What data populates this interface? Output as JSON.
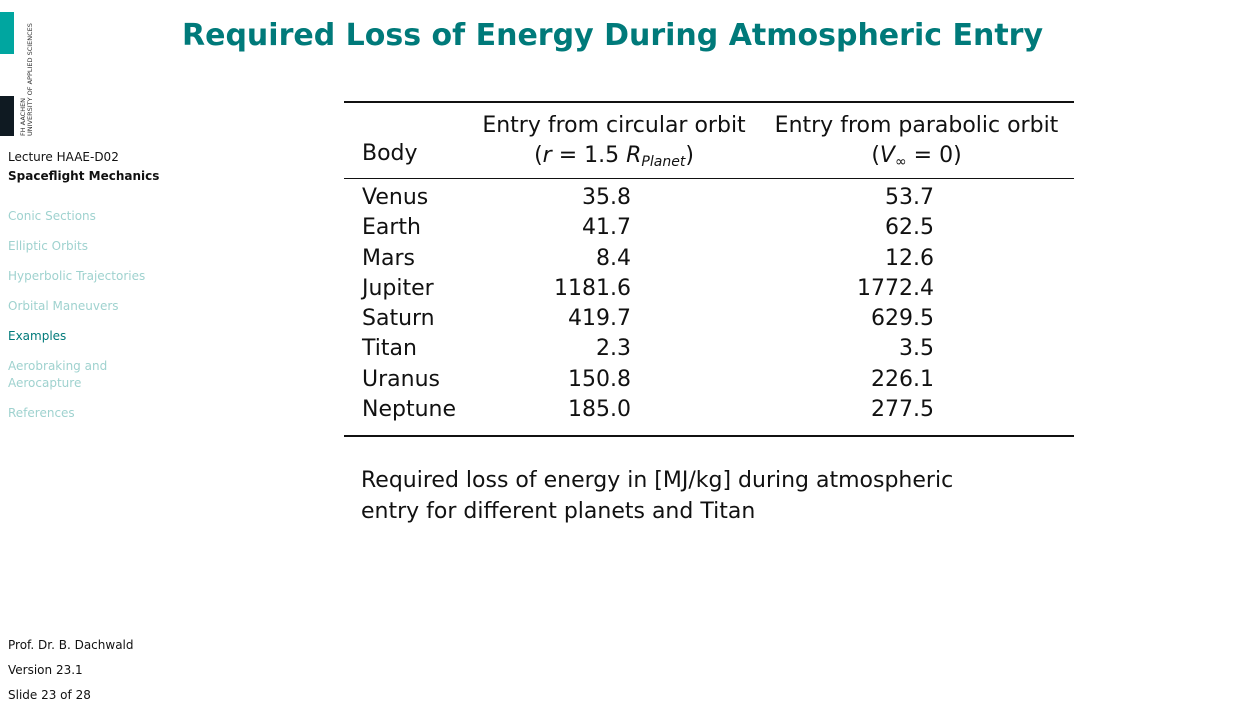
{
  "logo": {
    "line1": "FH AACHEN",
    "line2": "UNIVERSITY OF APPLIED SCIENCES"
  },
  "sidebar": {
    "lecture_code": "Lecture HAAE-D02",
    "course_title": "Spaceflight Mechanics",
    "nav": [
      {
        "label": "Conic Sections",
        "active": false
      },
      {
        "label": "Elliptic Orbits",
        "active": false
      },
      {
        "label": "Hyperbolic Trajectories",
        "active": false
      },
      {
        "label": "Orbital Maneuvers",
        "active": false
      },
      {
        "label": "Examples",
        "active": true
      },
      {
        "label": "Aerobraking and Aerocapture",
        "active": false
      },
      {
        "label": "References",
        "active": false
      }
    ],
    "author": "Prof. Dr. B. Dachwald",
    "version": "Version 23.1",
    "slide_info": "Slide 23 of 28"
  },
  "slide": {
    "title": "Required Loss of Energy During Atmospheric Entry",
    "table": {
      "header_body": "Body",
      "header_c1_line1": "Entry from circular orbit",
      "header_c1_open": "(",
      "header_c1_r": "r",
      "header_c1_eq": " = 1.5 ",
      "header_c1_R": "R",
      "header_c1_sub": "Planet",
      "header_c1_close": ")",
      "header_c2_line1": "Entry from parabolic orbit",
      "header_c2_open": "(",
      "header_c2_V": "V",
      "header_c2_sub": "∞",
      "header_c2_eq": " = 0)",
      "rows": [
        {
          "body": "Venus",
          "circular": "35.8",
          "parabolic": "53.7"
        },
        {
          "body": "Earth",
          "circular": "41.7",
          "parabolic": "62.5"
        },
        {
          "body": "Mars",
          "circular": "8.4",
          "parabolic": "12.6"
        },
        {
          "body": "Jupiter",
          "circular": "1181.6",
          "parabolic": "1772.4"
        },
        {
          "body": "Saturn",
          "circular": "419.7",
          "parabolic": "629.5"
        },
        {
          "body": "Titan",
          "circular": "2.3",
          "parabolic": "3.5"
        },
        {
          "body": "Uranus",
          "circular": "150.8",
          "parabolic": "226.1"
        },
        {
          "body": "Neptune",
          "circular": "185.0",
          "parabolic": "277.5"
        }
      ]
    },
    "caption": "Required loss of energy in [MJ/kg] during atmospheric entry for different planets and Titan"
  }
}
